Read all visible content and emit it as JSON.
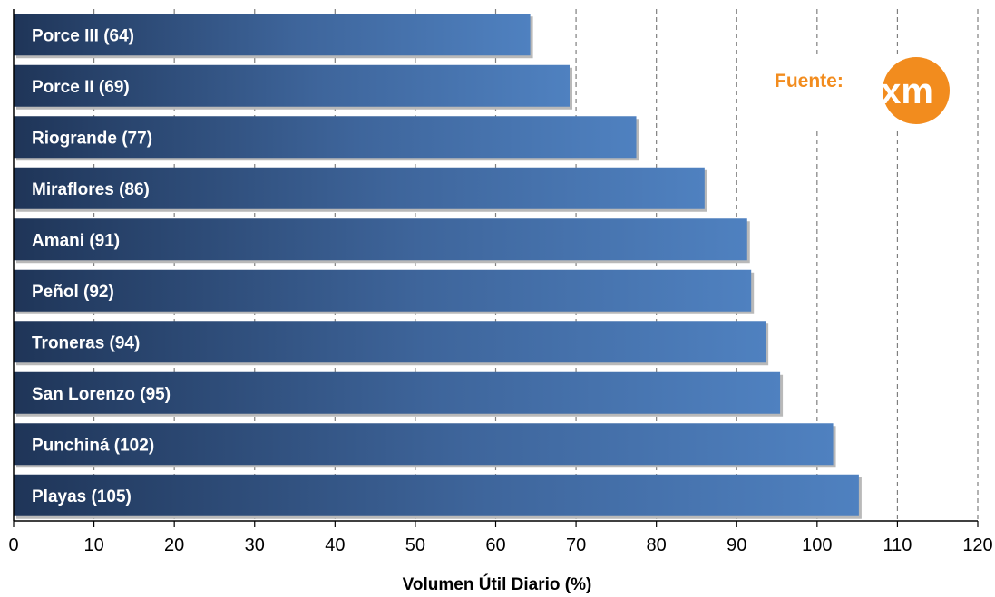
{
  "chart_data": {
    "type": "bar",
    "orientation": "horizontal",
    "categories": [
      "Porce III (64)",
      "Porce II (69)",
      "Riogrande (77)",
      "Miraflores (86)",
      "Amani (91)",
      "Peñol (92)",
      "Troneras (94)",
      "San Lorenzo (95)",
      "Punchiná (102)",
      "Playas (105)"
    ],
    "values": [
      64.3,
      69.2,
      77.5,
      86.0,
      91.3,
      91.8,
      93.6,
      95.4,
      102.0,
      105.2
    ],
    "xlabel": "Volumen Útil Diario (%)",
    "xlim": [
      0,
      120
    ],
    "xticks": [
      "0",
      "10",
      "20",
      "30",
      "40",
      "50",
      "60",
      "70",
      "80",
      "90",
      "100",
      "110",
      "120"
    ],
    "grid": "vertical dashed",
    "colors": {
      "bar_light": "#4f81c0",
      "bar_dark": "#1f3558",
      "source_label": "#f28c1e",
      "logo": "#f28c1e"
    }
  },
  "source": {
    "label": "Fuente:",
    "logo_text": "xm",
    "logo_icon": "xm-logo-icon"
  }
}
